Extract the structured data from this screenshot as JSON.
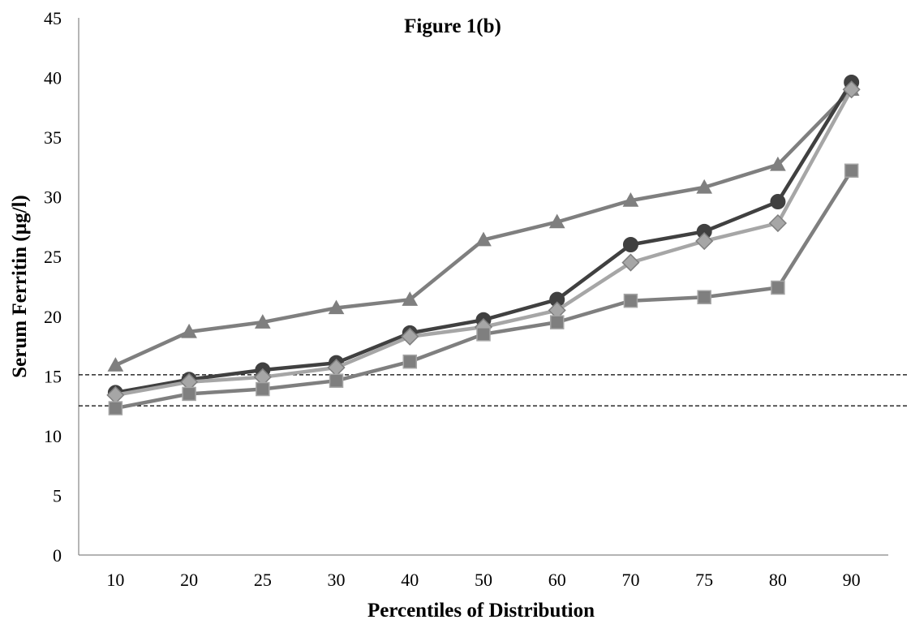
{
  "chart_data": {
    "type": "line",
    "title": "Figure 1(b)",
    "xlabel": "Percentiles of Distribution",
    "ylabel": "Serum Ferritin (µg/l)",
    "categories": [
      "10",
      "20",
      "25",
      "30",
      "40",
      "50",
      "60",
      "70",
      "75",
      "80",
      "90"
    ],
    "ylim": [
      0,
      45
    ],
    "yticks": [
      "0",
      "5",
      "10",
      "15",
      "20",
      "25",
      "30",
      "35",
      "40",
      "45"
    ],
    "grid": false,
    "legend": "none",
    "reference_lines": [
      15.1,
      12.5
    ],
    "series": [
      {
        "marker": "triangle",
        "color": "#7f7f7f",
        "markerColor": "#7f7f7f",
        "values": [
          15.9,
          18.7,
          19.5,
          20.7,
          21.4,
          26.4,
          27.9,
          29.7,
          30.8,
          32.7,
          39.0
        ]
      },
      {
        "marker": "circle",
        "color": "#404040",
        "markerColor": "#404040",
        "values": [
          13.6,
          14.7,
          15.5,
          16.1,
          18.6,
          19.7,
          21.4,
          26.0,
          27.1,
          29.6,
          39.6
        ]
      },
      {
        "marker": "diamond",
        "color": "#a6a6a6",
        "markerColor": "#a6a6a6",
        "values": [
          13.4,
          14.5,
          14.9,
          15.7,
          18.3,
          19.1,
          20.5,
          24.5,
          26.3,
          27.8,
          39.0
        ]
      },
      {
        "marker": "square",
        "color": "#7f7f7f",
        "markerColor": "#7f7f7f",
        "values": [
          12.3,
          13.5,
          13.9,
          14.6,
          16.2,
          18.5,
          19.5,
          21.3,
          21.6,
          22.4,
          32.2
        ]
      }
    ]
  }
}
